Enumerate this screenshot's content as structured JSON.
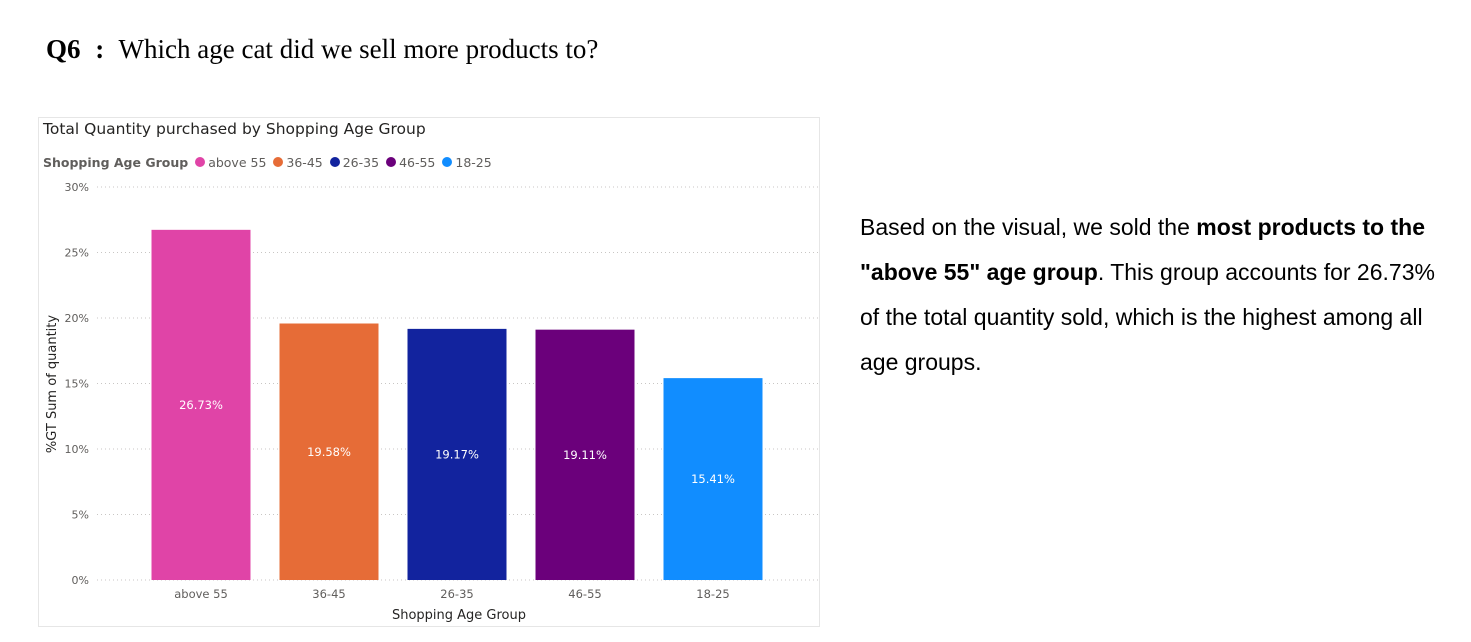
{
  "question": {
    "label": "Q6",
    "colon": ":",
    "text": "Which age cat did we sell more products to?"
  },
  "legend": {
    "title": "Shopping Age Group"
  },
  "answer": {
    "part1": "Based on the visual, we sold the ",
    "bold": "most products to the \"above 55\" age group",
    "part2": ". This group accounts for 26.73% of the total quantity sold, which is the highest among all age groups."
  },
  "chart_data": {
    "type": "bar",
    "title": "Total Quantity purchased by Shopping Age Group",
    "xlabel": "Shopping Age Group",
    "ylabel": "%GT Sum of quantity",
    "categories": [
      "above 55",
      "36-45",
      "26-35",
      "46-55",
      "18-25"
    ],
    "values": [
      26.73,
      19.58,
      19.17,
      19.11,
      15.41
    ],
    "data_labels": [
      "26.73%",
      "19.58%",
      "19.17%",
      "19.11%",
      "15.41%"
    ],
    "colors": [
      "#e044a7",
      "#e66c37",
      "#12239e",
      "#6b007b",
      "#118dff"
    ],
    "ylim": [
      0,
      30
    ],
    "yticks": [
      0,
      5,
      10,
      15,
      20,
      25,
      30
    ],
    "ytick_labels": [
      "0%",
      "5%",
      "10%",
      "15%",
      "20%",
      "25%",
      "30%"
    ],
    "grid": true,
    "legend_position": "top-left"
  }
}
